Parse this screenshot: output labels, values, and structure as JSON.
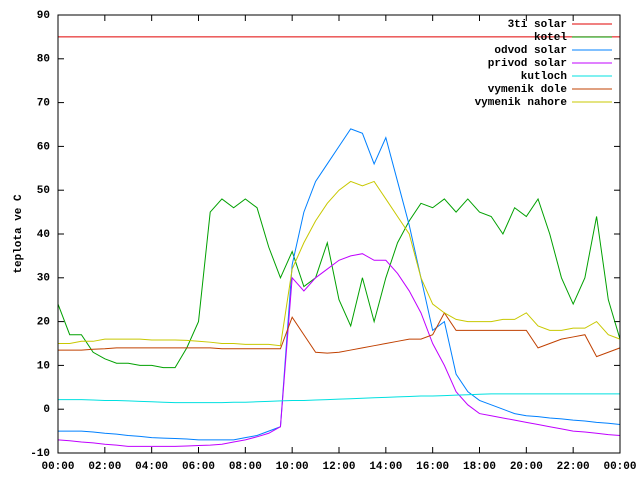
{
  "chart_data": {
    "type": "line",
    "y_label": "teplota ve C",
    "xlim": [
      0,
      24
    ],
    "xticks": [
      {
        "value": 0,
        "label": "00:00"
      },
      {
        "value": 2,
        "label": "02:00"
      },
      {
        "value": 4,
        "label": "04:00"
      },
      {
        "value": 6,
        "label": "06:00"
      },
      {
        "value": 8,
        "label": "08:00"
      },
      {
        "value": 10,
        "label": "10:00"
      },
      {
        "value": 12,
        "label": "12:00"
      },
      {
        "value": 14,
        "label": "14:00"
      },
      {
        "value": 16,
        "label": "16:00"
      },
      {
        "value": 18,
        "label": "18:00"
      },
      {
        "value": 20,
        "label": "20:00"
      },
      {
        "value": 22,
        "label": "22:00"
      },
      {
        "value": 24,
        "label": "00:00"
      }
    ],
    "ylim": [
      -10,
      90
    ],
    "yticks": [
      -10,
      0,
      10,
      20,
      30,
      40,
      50,
      60,
      70,
      80,
      90
    ],
    "legend": "top-right",
    "x": [
      0,
      0.5,
      1,
      1.5,
      2,
      2.5,
      3,
      3.5,
      4,
      4.5,
      5,
      5.5,
      6,
      6.5,
      7,
      7.5,
      8,
      8.5,
      9,
      9.5,
      10,
      10.5,
      11,
      11.5,
      12,
      12.5,
      13,
      13.5,
      14,
      14.5,
      15,
      15.5,
      16,
      16.5,
      17,
      17.5,
      18,
      18.5,
      19,
      19.5,
      20,
      20.5,
      21,
      21.5,
      22,
      22.5,
      23,
      23.5,
      24
    ],
    "series": [
      {
        "name": "3ti solar",
        "color": "#e00000",
        "values": [
          85,
          85,
          85,
          85,
          85,
          85,
          85,
          85,
          85,
          85,
          85,
          85,
          85,
          85,
          85,
          85,
          85,
          85,
          85,
          85,
          85,
          85,
          85,
          85,
          85,
          85,
          85,
          85,
          85,
          85,
          85,
          85,
          85,
          85,
          85,
          85,
          85,
          85,
          85,
          85,
          85,
          85,
          85,
          85,
          85,
          85,
          85,
          85,
          85
        ]
      },
      {
        "name": "kotel",
        "color": "#00a000",
        "values": [
          24,
          17,
          17,
          13,
          11.5,
          10.5,
          10.5,
          10,
          10,
          9.5,
          9.5,
          14,
          20,
          45,
          48,
          46,
          48,
          46,
          37,
          30,
          36,
          28,
          30,
          38,
          25,
          19,
          30,
          20,
          30,
          38,
          43,
          47,
          46,
          48,
          45,
          48,
          45,
          44,
          40,
          46,
          44,
          48,
          40,
          30,
          24,
          30,
          44,
          25,
          16
        ]
      },
      {
        "name": "odvod solar",
        "color": "#0080ff",
        "values": [
          -5,
          -5,
          -5,
          -5.2,
          -5.5,
          -5.7,
          -6,
          -6.2,
          -6.5,
          -6.6,
          -6.7,
          -6.8,
          -7,
          -7,
          -7,
          -7,
          -6.5,
          -6,
          -5,
          -4,
          33,
          45,
          52,
          56,
          60,
          64,
          63,
          56,
          62,
          52,
          42,
          30,
          18,
          20,
          8,
          4,
          2,
          1,
          0,
          -1,
          -1.5,
          -1.7,
          -2,
          -2.2,
          -2.5,
          -2.7,
          -3,
          -3.2,
          -3.5
        ]
      },
      {
        "name": "privod solar",
        "color": "#c000ff",
        "values": [
          -7,
          -7.2,
          -7.5,
          -7.7,
          -8,
          -8.2,
          -8.5,
          -8.5,
          -8.5,
          -8.5,
          -8.5,
          -8.4,
          -8.3,
          -8.2,
          -8,
          -7.5,
          -7,
          -6.3,
          -5.5,
          -4,
          30,
          27,
          30,
          32,
          34,
          35,
          35.5,
          34,
          34,
          31,
          27,
          22,
          15,
          10,
          4,
          1,
          -1,
          -1.5,
          -2,
          -2.5,
          -3,
          -3.5,
          -4,
          -4.5,
          -5,
          -5.2,
          -5.5,
          -5.8,
          -6
        ]
      },
      {
        "name": "kutloch",
        "color": "#00e0e0",
        "values": [
          2.2,
          2.2,
          2.2,
          2.1,
          2,
          2,
          1.9,
          1.8,
          1.7,
          1.6,
          1.5,
          1.5,
          1.5,
          1.5,
          1.5,
          1.6,
          1.6,
          1.7,
          1.8,
          1.9,
          2,
          2,
          2.1,
          2.2,
          2.3,
          2.4,
          2.5,
          2.6,
          2.7,
          2.8,
          2.9,
          3,
          3,
          3.1,
          3.2,
          3.3,
          3.4,
          3.5,
          3.5,
          3.5,
          3.5,
          3.5,
          3.5,
          3.5,
          3.5,
          3.5,
          3.5,
          3.5,
          3.5
        ]
      },
      {
        "name": "vymenik dole",
        "color": "#c04000",
        "values": [
          13.5,
          13.5,
          13.5,
          13.7,
          13.8,
          14,
          14,
          14,
          14,
          14,
          14,
          14,
          14,
          14,
          13.8,
          13.8,
          13.8,
          13.8,
          13.8,
          13.8,
          21,
          17,
          13,
          12.8,
          13,
          13.5,
          14,
          14.5,
          15,
          15.5,
          16,
          16,
          17,
          22,
          18,
          18,
          18,
          18,
          18,
          18,
          18,
          14,
          15,
          16,
          16.5,
          17,
          12,
          13,
          14
        ]
      },
      {
        "name": "vymenik nahore",
        "color": "#c8c800",
        "values": [
          15,
          15,
          15.5,
          15.5,
          16,
          16,
          16,
          16,
          15.8,
          15.8,
          15.8,
          15.7,
          15.5,
          15.3,
          15,
          15,
          14.8,
          14.8,
          14.8,
          14.5,
          32,
          38,
          43,
          47,
          50,
          52,
          51,
          52,
          48,
          44,
          40,
          30,
          24,
          22,
          20.5,
          20,
          20,
          20,
          20.5,
          20.5,
          22,
          19,
          18,
          18,
          18.5,
          18.5,
          20,
          17,
          16
        ]
      }
    ]
  }
}
